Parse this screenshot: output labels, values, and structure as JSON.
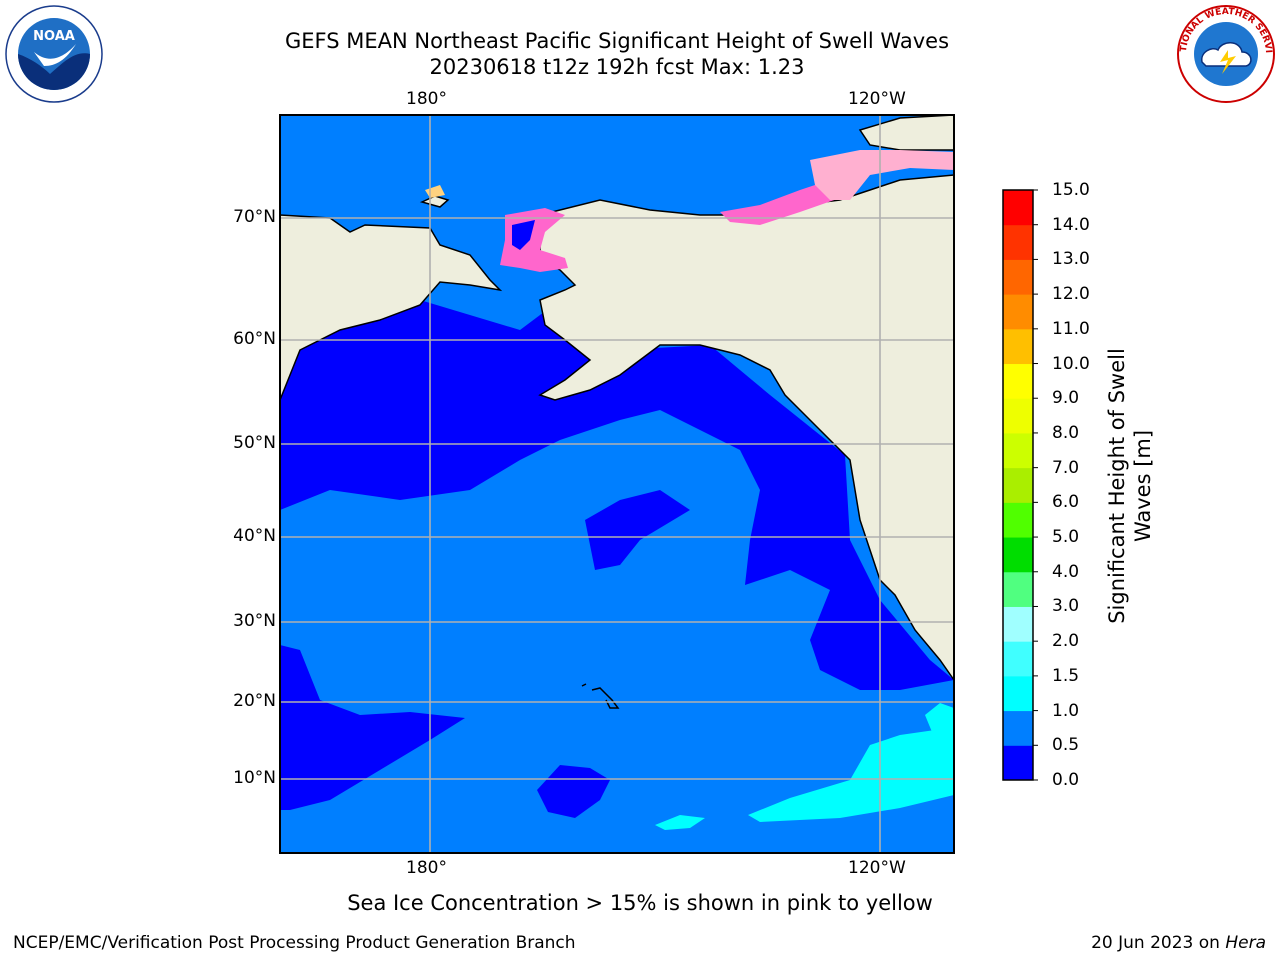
{
  "title_line1": "GEFS MEAN Northeast Pacific Significant Height of Swell Waves",
  "title_line2": "20230618 t12z 192h fcst   Max: 1.23",
  "lon_ticks": [
    "180°",
    "120°W"
  ],
  "lat_ticks": [
    "70°N",
    "60°N",
    "50°N",
    "40°N",
    "30°N",
    "20°N",
    "10°N"
  ],
  "colorbar": {
    "title_line1": "Significant Height of Swell",
    "title_line2": "Waves [m]",
    "labels": [
      "15.0",
      "14.0",
      "13.0",
      "12.0",
      "11.0",
      "10.0",
      "9.0",
      "8.0",
      "7.0",
      "6.0",
      "5.0",
      "4.0",
      "3.0",
      "2.0",
      "1.5",
      "1.0",
      "0.5",
      "0.0"
    ],
    "colors_bottom_to_top": [
      "#0000ff",
      "#007fff",
      "#00ffff",
      "#40ffff",
      "#a0ffff",
      "#50ff80",
      "#00dd00",
      "#50ff00",
      "#aaee00",
      "#ccff00",
      "#eeff00",
      "#ffff00",
      "#ffbf00",
      "#ff8c00",
      "#ff6600",
      "#ff3300",
      "#ff0000"
    ]
  },
  "colors": {
    "land": "#eeeedd",
    "swell_0_05": "#0000ff",
    "swell_05_10": "#007fff",
    "swell_10_15": "#00ffff",
    "sea_ice_low": "#ff66cc",
    "sea_ice_high": "#ffd27f"
  },
  "logos": {
    "left": "NOAA",
    "right": "NATIONAL WEATHER SERVICE"
  },
  "subtitle": "Sea Ice Concentration > 15% is shown in pink to yellow",
  "footer_left": "NCEP/EMC/Verification Post Processing Product Generation Branch",
  "footer_right_date": "20 Jun 2023 on",
  "footer_right_host": "Hera"
}
